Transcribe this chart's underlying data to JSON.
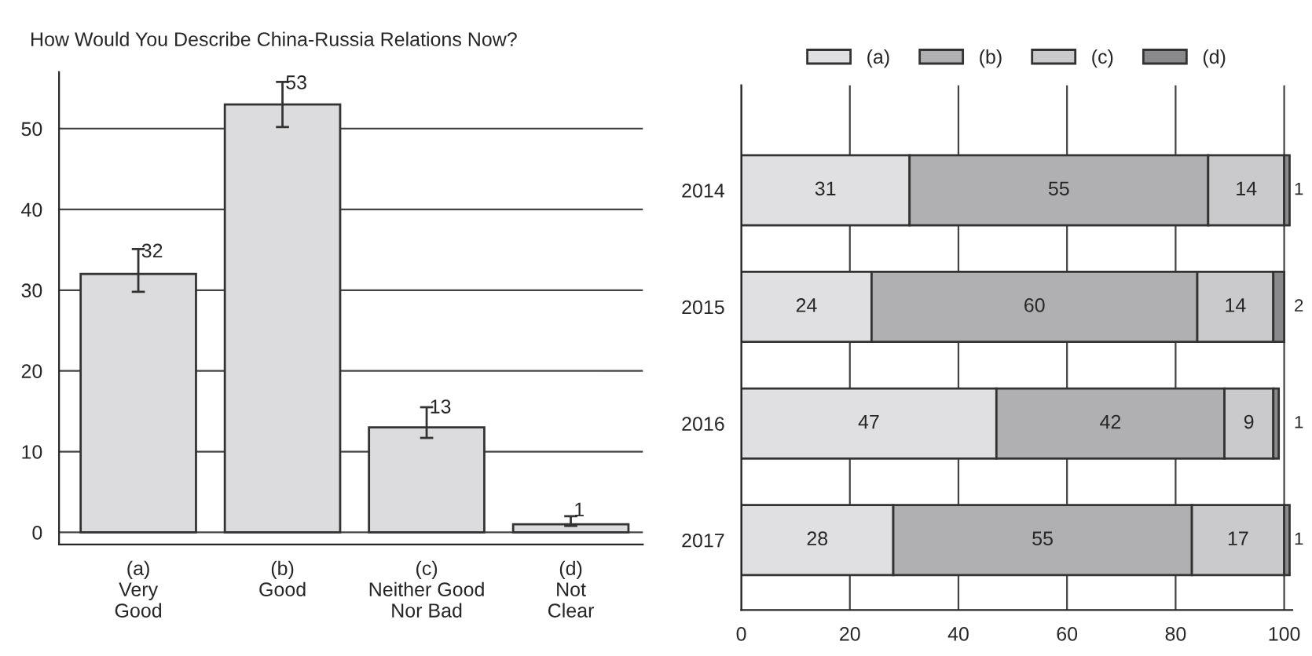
{
  "chart_data": [
    {
      "type": "bar",
      "title": "How Would You Describe China-Russia Relations Now?",
      "categories": [
        "(a)\nVery\nGood",
        "(b)\nGood",
        "(c)\nNeither Good\nNor Bad",
        "(d)\nNot\nClear"
      ],
      "values": [
        32,
        53,
        13,
        1
      ],
      "color": "#dcdcde",
      "errors": [
        [
          29.8,
          35.1
        ],
        [
          50.2,
          55.8
        ],
        [
          11.7,
          15.5
        ],
        [
          0.8,
          2.0
        ]
      ],
      "data_labels": true,
      "ylim": [
        -1.5,
        57
      ],
      "yticks": [
        0,
        10,
        20,
        30,
        40,
        50
      ],
      "grid": "y"
    },
    {
      "type": "bar",
      "orientation": "horizontal",
      "stacked": true,
      "categories": [
        "2014",
        "2015",
        "2016",
        "2017"
      ],
      "series": [
        {
          "name": "(a)",
          "color": "#e0e0e2",
          "values": [
            31,
            24,
            47,
            28
          ]
        },
        {
          "name": "(b)",
          "color": "#b0b0b2",
          "values": [
            55,
            60,
            42,
            55
          ]
        },
        {
          "name": "(c)",
          "color": "#cacacc",
          "values": [
            14,
            14,
            9,
            17
          ]
        },
        {
          "name": "(d)",
          "color": "#8a8a8c",
          "values": [
            1,
            2,
            1,
            1
          ]
        }
      ],
      "data_labels": true,
      "xlim": [
        0,
        101.5
      ],
      "xticks": [
        0,
        20,
        40,
        60,
        80,
        100
      ],
      "grid": "x",
      "legend": "top"
    }
  ]
}
